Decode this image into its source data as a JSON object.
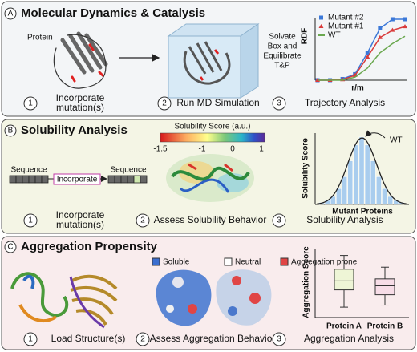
{
  "panel_a": {
    "label": "A",
    "title": "Molecular Dynamics & Catalysis",
    "protein_label": "Protein",
    "solvate_lines": [
      "Solvate",
      "Box and",
      "Equilibrate",
      "T&P"
    ],
    "steps": [
      {
        "number": "1",
        "lines": [
          "Incorporate",
          "mutation(s)"
        ]
      },
      {
        "number": "2",
        "lines": [
          "Run MD Simulation"
        ]
      },
      {
        "number": "3",
        "lines": [
          "Trajectory Analysis"
        ]
      }
    ],
    "chart": {
      "type": "line",
      "y_label": "RDF",
      "x_label": "r/m",
      "ylim": [
        0,
        1
      ],
      "series": [
        {
          "name": "Mutant #2",
          "color": "#3b78d8",
          "marker": "square",
          "values": [
            0,
            0,
            0.02,
            0.1,
            0.45,
            0.85,
            1,
            1
          ]
        },
        {
          "name": "Mutant #1",
          "color": "#d93b3b",
          "marker": "triangle",
          "values": [
            0,
            0,
            0.01,
            0.08,
            0.38,
            0.7,
            0.82,
            0.88
          ]
        },
        {
          "name": "WT",
          "color": "#6aa84f",
          "marker": "line",
          "values": [
            0,
            0,
            0,
            0.05,
            0.2,
            0.45,
            0.6,
            0.72
          ]
        }
      ]
    }
  },
  "panel_b": {
    "label": "B",
    "title": "Solubility Analysis",
    "colorbar_title": "Solubility Score (a.u.)",
    "colorbar_ticks": [
      -1.5,
      -1,
      0,
      1
    ],
    "sequence_in": "Sequence",
    "operation": "Incorporate",
    "sequence_out": "Sequence",
    "steps": [
      {
        "number": "1",
        "lines": [
          "Incorporate",
          "mutation(s)"
        ]
      },
      {
        "number": "2",
        "lines": [
          "Assess Solubility Behavior"
        ]
      },
      {
        "number": "3",
        "lines": [
          "Solubility Analysis"
        ]
      }
    ],
    "chart": {
      "type": "histogram",
      "y_label": "Solubility Score",
      "x_label": "Mutant Proteins",
      "annotation": "WT",
      "color": "#a9cdee",
      "ylim": [
        0,
        36
      ],
      "counts": [
        1,
        2,
        4,
        8,
        14,
        22,
        30,
        34,
        30,
        22,
        14,
        8,
        4,
        2,
        1
      ]
    }
  },
  "panel_c": {
    "label": "C",
    "title": "Aggregation Propensity",
    "legend": [
      {
        "name": "Soluble",
        "color": "#3b6fd0"
      },
      {
        "name": "Neutral",
        "color": "#ffffff"
      },
      {
        "name": "Aggregation prone",
        "color": "#e04545"
      }
    ],
    "steps": [
      {
        "number": "1",
        "lines": [
          "Load Structure(s)"
        ]
      },
      {
        "number": "2",
        "lines": [
          "Assess Aggregation Behavior"
        ]
      },
      {
        "number": "3",
        "lines": [
          "Aggregation Analysis"
        ]
      }
    ],
    "chart": {
      "type": "box",
      "y_label": "Aggregation Score",
      "ylim": [
        0,
        10
      ],
      "boxes": [
        {
          "name": "Protein A",
          "color": "#eef5d6",
          "min": 1.5,
          "q1": 4,
          "median": 5.3,
          "q3": 7,
          "max": 9
        },
        {
          "name": "Protein B",
          "color": "#f7dde7",
          "min": 1.8,
          "q1": 3.3,
          "median": 4.6,
          "q3": 5.6,
          "max": 7.3
        }
      ]
    }
  }
}
